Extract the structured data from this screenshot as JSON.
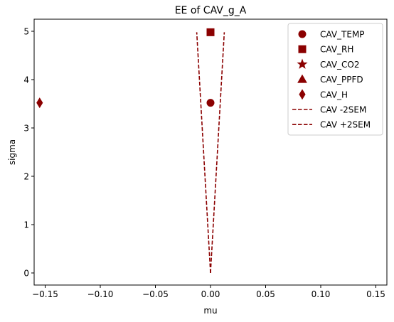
{
  "chart_data": {
    "type": "scatter",
    "title": "EE of CAV_g_A",
    "xlabel": "mu",
    "ylabel": "sigma",
    "xlim": [
      -0.16,
      0.16
    ],
    "ylim": [
      -0.25,
      5.25
    ],
    "xticks": [
      -0.15,
      -0.1,
      -0.05,
      0.0,
      0.05,
      0.1,
      0.15
    ],
    "xtick_labels": [
      "−0.15",
      "−0.10",
      "−0.05",
      "0.00",
      "0.05",
      "0.10",
      "0.15"
    ],
    "yticks": [
      0,
      1,
      2,
      3,
      4,
      5
    ],
    "ytick_labels": [
      "0",
      "1",
      "2",
      "3",
      "4",
      "5"
    ],
    "grid": false,
    "legend_position": "top-right",
    "color": "#8b0000",
    "series": [
      {
        "name": "CAV_TEMP",
        "marker": "circle",
        "points": [
          [
            0.0,
            3.52
          ]
        ]
      },
      {
        "name": "CAV_RH",
        "marker": "square",
        "points": [
          [
            0.0,
            4.98
          ]
        ]
      },
      {
        "name": "CAV_CO2",
        "marker": "star",
        "points": []
      },
      {
        "name": "CAV_PPFD",
        "marker": "triangle",
        "points": []
      },
      {
        "name": "CAV_H",
        "marker": "diamond",
        "points": [
          [
            -0.155,
            3.52
          ]
        ]
      }
    ],
    "lines": [
      {
        "name": "CAV -2SEM",
        "style": "dashed",
        "points": [
          [
            0.0,
            0.0
          ],
          [
            -0.0125,
            4.98
          ]
        ]
      },
      {
        "name": "CAV +2SEM",
        "style": "dashed",
        "points": [
          [
            0.0,
            0.0
          ],
          [
            0.0125,
            4.98
          ]
        ]
      }
    ]
  }
}
